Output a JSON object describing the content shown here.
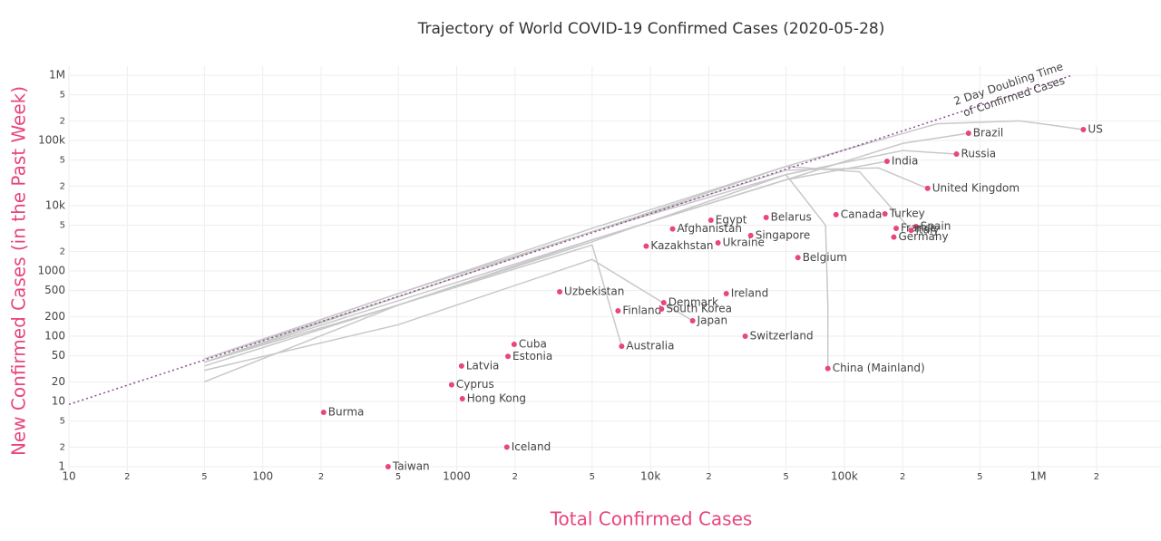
{
  "chart_data": {
    "type": "scatter",
    "title": "Trajectory of World COVID-19 Confirmed Cases (2020-05-28)",
    "x_label": "Total Confirmed Cases",
    "y_label": "New Confirmed Cases (in the Past Week)",
    "log_x": true,
    "log_y": true,
    "grid": true,
    "xlim": [
      10,
      4300000
    ],
    "ylim": [
      1,
      1000000
    ],
    "xticks": [
      10,
      {
        "value": 20,
        "label": "2"
      },
      {
        "value": 50,
        "label": "5"
      },
      100,
      {
        "value": 200,
        "label": "2"
      },
      {
        "value": 500,
        "label": "5"
      },
      1000,
      {
        "value": 2000,
        "label": "2"
      },
      {
        "value": 5000,
        "label": "5"
      },
      {
        "value": 10000,
        "label": "10k"
      },
      {
        "value": 20000,
        "label": "2"
      },
      {
        "value": 50000,
        "label": "5"
      },
      {
        "value": 100000,
        "label": "100k"
      },
      {
        "value": 200000,
        "label": "2"
      },
      {
        "value": 500000,
        "label": "5"
      },
      {
        "value": 1000000,
        "label": "1M"
      },
      {
        "value": 2000000,
        "label": "2"
      }
    ],
    "yticks": [
      1,
      2,
      5,
      10,
      20,
      50,
      100,
      200,
      500,
      1000,
      {
        "value": 2000,
        "label": "2"
      },
      {
        "value": 5000,
        "label": "5"
      },
      {
        "value": 10000,
        "label": "10k"
      },
      {
        "value": 20000,
        "label": "2"
      },
      {
        "value": 50000,
        "label": "5"
      },
      {
        "value": 100000,
        "label": "100k"
      },
      {
        "value": 200000,
        "label": "2"
      },
      {
        "value": 500000,
        "label": "5"
      },
      {
        "value": 1000000,
        "label": "1M"
      }
    ],
    "point_color": "#e8467c",
    "line_color": "#c8c8c8",
    "doubling_color": "#8b4c8b",
    "points": [
      {
        "name": "US",
        "x": 1710000,
        "y": 147000
      },
      {
        "name": "Brazil",
        "x": 437000,
        "y": 129000
      },
      {
        "name": "Russia",
        "x": 379000,
        "y": 62000
      },
      {
        "name": "India",
        "x": 166000,
        "y": 48000
      },
      {
        "name": "United Kingdom",
        "x": 269000,
        "y": 18400
      },
      {
        "name": "Canada",
        "x": 90600,
        "y": 7300
      },
      {
        "name": "Turkey",
        "x": 162000,
        "y": 7500
      },
      {
        "name": "Spain",
        "x": 234000,
        "y": 4800
      },
      {
        "name": "France",
        "x": 185000,
        "y": 4500
      },
      {
        "name": "Italy",
        "x": 221000,
        "y": 4200
      },
      {
        "name": "Germany",
        "x": 180000,
        "y": 3300
      },
      {
        "name": "Belarus",
        "x": 39500,
        "y": 6600
      },
      {
        "name": "Egypt",
        "x": 20500,
        "y": 6000
      },
      {
        "name": "Afghanistan",
        "x": 13000,
        "y": 4400
      },
      {
        "name": "Singapore",
        "x": 32900,
        "y": 3500
      },
      {
        "name": "Kazakhstan",
        "x": 9500,
        "y": 2400
      },
      {
        "name": "Ukraine",
        "x": 22300,
        "y": 2700
      },
      {
        "name": "Belgium",
        "x": 57600,
        "y": 1600
      },
      {
        "name": "Uzbekistan",
        "x": 3400,
        "y": 480
      },
      {
        "name": "Ireland",
        "x": 24600,
        "y": 450
      },
      {
        "name": "Denmark",
        "x": 11700,
        "y": 326
      },
      {
        "name": "Finland",
        "x": 6800,
        "y": 245
      },
      {
        "name": "South Korea",
        "x": 11400,
        "y": 261
      },
      {
        "name": "Japan",
        "x": 16500,
        "y": 172
      },
      {
        "name": "Switzerland",
        "x": 30800,
        "y": 100
      },
      {
        "name": "Australia",
        "x": 7100,
        "y": 70
      },
      {
        "name": "China (Mainland)",
        "x": 82200,
        "y": 32
      },
      {
        "name": "Cuba",
        "x": 1980,
        "y": 75
      },
      {
        "name": "Estonia",
        "x": 1840,
        "y": 49
      },
      {
        "name": "Latvia",
        "x": 1060,
        "y": 35
      },
      {
        "name": "Cyprus",
        "x": 942,
        "y": 18
      },
      {
        "name": "Hong Kong",
        "x": 1070,
        "y": 11
      },
      {
        "name": "Burma",
        "x": 206,
        "y": 6.8
      },
      {
        "name": "Iceland",
        "x": 1815,
        "y": 2
      },
      {
        "name": "Taiwan",
        "x": 443,
        "y": 1
      }
    ],
    "lines": [
      {
        "x": [
          50,
          500,
          5000,
          50000,
          300000,
          800000,
          1200000,
          1710000
        ],
        "y": [
          45,
          400,
          4000,
          40000,
          180000,
          200000,
          170000,
          147000
        ]
      },
      {
        "x": [
          50,
          500,
          5000,
          50000,
          200000,
          437000
        ],
        "y": [
          40,
          350,
          3000,
          25000,
          90000,
          129000
        ]
      },
      {
        "x": [
          50,
          500,
          5000,
          50000,
          200000,
          379000
        ],
        "y": [
          35,
          300,
          2800,
          30000,
          70000,
          62000
        ]
      },
      {
        "x": [
          50,
          500,
          5000,
          50000,
          166000
        ],
        "y": [
          40,
          300,
          3000,
          25000,
          48000
        ]
      },
      {
        "x": [
          50,
          500,
          5000,
          50000,
          150000,
          269000
        ],
        "y": [
          45,
          450,
          4000,
          35000,
          38000,
          18400
        ]
      },
      {
        "x": [
          50,
          500,
          5000,
          50000,
          120000,
          221000
        ],
        "y": [
          45,
          450,
          4500,
          40000,
          33000,
          4200
        ]
      },
      {
        "x": [
          50,
          500,
          5000,
          50000,
          80000,
          82200,
          82200
        ],
        "y": [
          40,
          400,
          4000,
          30000,
          5000,
          300,
          32
        ]
      },
      {
        "x": [
          50,
          500,
          5000,
          16500
        ],
        "y": [
          30,
          150,
          1500,
          172
        ]
      },
      {
        "x": [
          50,
          500,
          5000,
          7100
        ],
        "y": [
          20,
          300,
          2500,
          70
        ]
      }
    ],
    "doubling_line": {
      "x": [
        10,
        1500000
      ],
      "y": [
        9,
        1000000
      ]
    },
    "annotation": [
      "2 Day Doubling Time",
      "of Confirmed Cases"
    ]
  }
}
